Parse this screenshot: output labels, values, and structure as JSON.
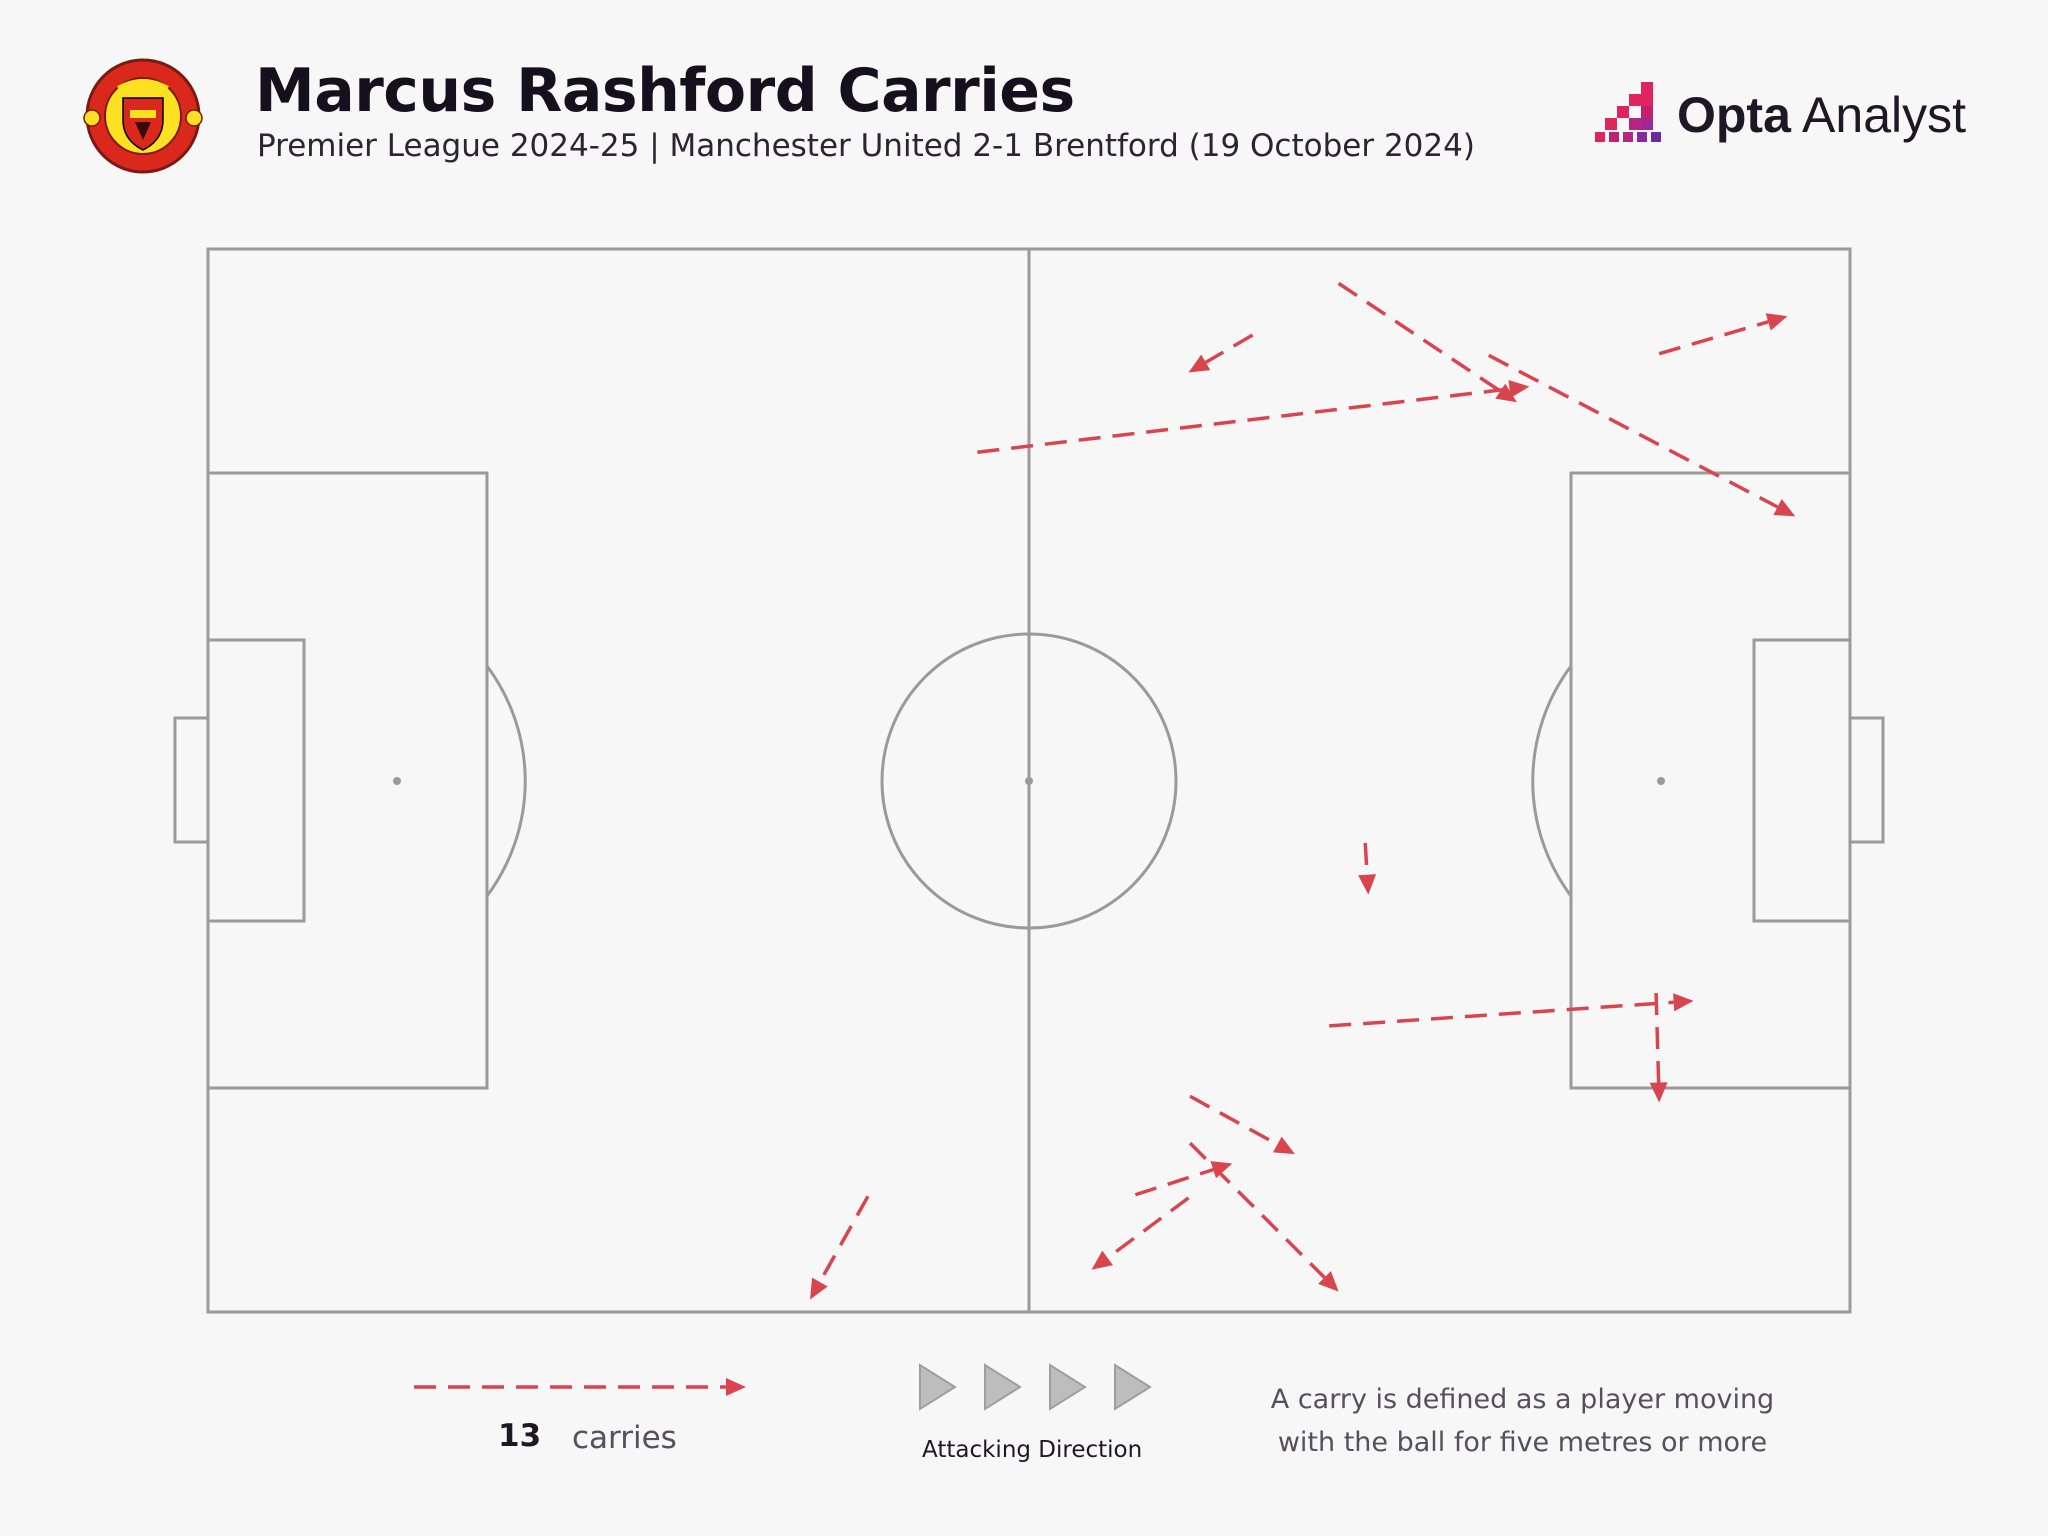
{
  "header": {
    "title": "Marcus Rashford Carries",
    "subtitle": "Premier League 2024-25 | Manchester United 2-1 Brentford (19 October 2024)"
  },
  "brand": {
    "name_bold": "Opta",
    "name_light": " Analyst",
    "accent": "#e0245e"
  },
  "crest": {
    "text": "MANCHESTER UNITED",
    "primary": "#da291c",
    "secondary": "#fbe122"
  },
  "legend": {
    "count": "13",
    "unit": "carries",
    "direction_label": "Attacking Direction",
    "note": "A carry is defined as a player moving with the ball for five metres or more"
  },
  "colors": {
    "carry": "#d9454f",
    "pitch_line": "#9a9a9a",
    "background": "#f7f7f7"
  },
  "chart_data": {
    "type": "scatter",
    "title": "Marcus Rashford Carries",
    "x_range": [
      0,
      105
    ],
    "y_range": [
      0,
      68
    ],
    "attacking_direction": "left-to-right",
    "carries": [
      {
        "x1": 66.8,
        "y1": 62.5,
        "x2": 62.7,
        "y2": 60.1
      },
      {
        "x1": 72.3,
        "y1": 65.8,
        "x2": 83.7,
        "y2": 58.2
      },
      {
        "x1": 49.2,
        "y1": 55.0,
        "x2": 84.5,
        "y2": 59.2
      },
      {
        "x1": 81.9,
        "y1": 61.2,
        "x2": 101.5,
        "y2": 50.9
      },
      {
        "x1": 92.8,
        "y1": 61.3,
        "x2": 101.0,
        "y2": 63.7
      },
      {
        "x1": 74.0,
        "y1": 30.0,
        "x2": 74.2,
        "y2": 26.7
      },
      {
        "x1": 71.7,
        "y1": 18.3,
        "x2": 95.0,
        "y2": 19.9
      },
      {
        "x1": 92.6,
        "y1": 20.4,
        "x2": 92.8,
        "y2": 13.4
      },
      {
        "x1": 62.8,
        "y1": 13.8,
        "x2": 69.5,
        "y2": 10.1
      },
      {
        "x1": 59.3,
        "y1": 7.5,
        "x2": 65.5,
        "y2": 9.5
      },
      {
        "x1": 62.8,
        "y1": 10.8,
        "x2": 72.3,
        "y2": 1.3
      },
      {
        "x1": 62.7,
        "y1": 7.3,
        "x2": 56.5,
        "y2": 2.7
      },
      {
        "x1": 42.2,
        "y1": 7.4,
        "x2": 38.5,
        "y2": 0.8
      }
    ]
  }
}
